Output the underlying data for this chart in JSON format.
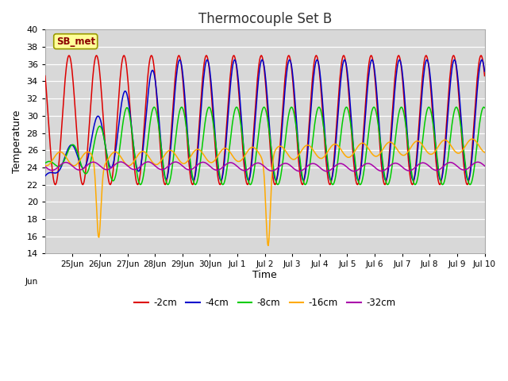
{
  "title": "Thermocouple Set B",
  "xlabel": "Time",
  "ylabel": "Temperature",
  "ylim": [
    14,
    40
  ],
  "yticks": [
    14,
    16,
    18,
    20,
    22,
    24,
    26,
    28,
    30,
    32,
    34,
    36,
    38,
    40
  ],
  "annotation_label": "SB_met",
  "bg_color": "#d8d8d8",
  "grid_color": "#ffffff",
  "colors": {
    "-2cm": "#dd0000",
    "-4cm": "#0000cc",
    "-8cm": "#00cc00",
    "-16cm": "#ffaa00",
    "-32cm": "#aa00aa"
  },
  "xtick_positions": [
    1,
    2,
    3,
    4,
    5,
    6,
    7,
    8,
    9,
    10,
    11,
    12,
    13,
    14,
    15,
    16
  ],
  "xtick_labels": [
    "25Jun",
    "26Jun",
    "27Jun",
    "28Jun",
    "29Jun",
    "30Jun",
    "Jul 1",
    "Jul 2",
    "Jul 3",
    "Jul 4",
    "Jul 5",
    "Jul 6",
    "Jul 7",
    "Jul 8",
    "Jul 9",
    "Jul 10"
  ],
  "xlim": [
    0,
    16
  ],
  "legend_labels": [
    "-2cm",
    "-4cm",
    "-8cm",
    "-16cm",
    "-32cm"
  ]
}
